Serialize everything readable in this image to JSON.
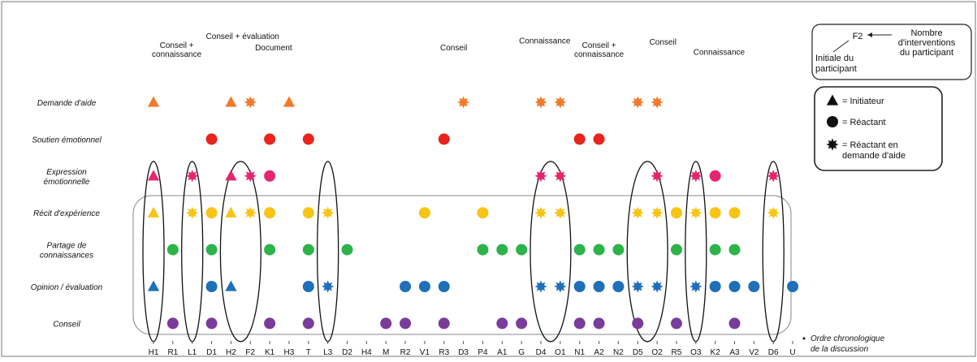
{
  "categories": [
    {
      "key": "demande",
      "label": [
        "Demande d'aide"
      ],
      "color": "#f07b2b"
    },
    {
      "key": "soutien",
      "label": [
        "Soutien émotionnel"
      ],
      "color": "#e8241c"
    },
    {
      "key": "expression",
      "label": [
        "Expression",
        "émotionnelle"
      ],
      "color": "#e5266f"
    },
    {
      "key": "recit",
      "label": [
        "Récit d'expérience"
      ],
      "color": "#f8c416"
    },
    {
      "key": "partage",
      "label": [
        "Partage de",
        "connaissances"
      ],
      "color": "#2cb34a"
    },
    {
      "key": "opinion",
      "label": [
        "Opinion / évaluation"
      ],
      "color": "#1f6fb9"
    },
    {
      "key": "conseil",
      "label": [
        "Conseil"
      ],
      "color": "#7a3c9b"
    }
  ],
  "participants": [
    "H1",
    "R1",
    "L1",
    "D1",
    "H2",
    "F2",
    "K1",
    "H3",
    "T",
    "L3",
    "D2",
    "H4",
    "M",
    "R2",
    "V1",
    "R3",
    "D3",
    "P4",
    "A1",
    "G",
    "D4",
    "O1",
    "N1",
    "A2",
    "N2",
    "D5",
    "O2",
    "R5",
    "O3",
    "K2",
    "A3",
    "V2",
    "D6",
    "U"
  ],
  "marks": [
    {
      "p": 0,
      "c": 0,
      "s": "triangle"
    },
    {
      "p": 4,
      "c": 0,
      "s": "triangle"
    },
    {
      "p": 5,
      "c": 0,
      "s": "star"
    },
    {
      "p": 7,
      "c": 0,
      "s": "triangle"
    },
    {
      "p": 16,
      "c": 0,
      "s": "star"
    },
    {
      "p": 20,
      "c": 0,
      "s": "star"
    },
    {
      "p": 21,
      "c": 0,
      "s": "star"
    },
    {
      "p": 25,
      "c": 0,
      "s": "star"
    },
    {
      "p": 26,
      "c": 0,
      "s": "star"
    },
    {
      "p": 3,
      "c": 1,
      "s": "circle"
    },
    {
      "p": 6,
      "c": 1,
      "s": "circle"
    },
    {
      "p": 8,
      "c": 1,
      "s": "circle"
    },
    {
      "p": 15,
      "c": 1,
      "s": "circle"
    },
    {
      "p": 22,
      "c": 1,
      "s": "circle"
    },
    {
      "p": 23,
      "c": 1,
      "s": "circle"
    },
    {
      "p": 0,
      "c": 2,
      "s": "triangle"
    },
    {
      "p": 2,
      "c": 2,
      "s": "star"
    },
    {
      "p": 4,
      "c": 2,
      "s": "triangle"
    },
    {
      "p": 5,
      "c": 2,
      "s": "star"
    },
    {
      "p": 6,
      "c": 2,
      "s": "circle"
    },
    {
      "p": 20,
      "c": 2,
      "s": "star"
    },
    {
      "p": 21,
      "c": 2,
      "s": "star"
    },
    {
      "p": 26,
      "c": 2,
      "s": "star"
    },
    {
      "p": 28,
      "c": 2,
      "s": "star"
    },
    {
      "p": 29,
      "c": 2,
      "s": "circle"
    },
    {
      "p": 32,
      "c": 2,
      "s": "star"
    },
    {
      "p": 0,
      "c": 3,
      "s": "triangle"
    },
    {
      "p": 2,
      "c": 3,
      "s": "star"
    },
    {
      "p": 3,
      "c": 3,
      "s": "circle"
    },
    {
      "p": 4,
      "c": 3,
      "s": "triangle"
    },
    {
      "p": 5,
      "c": 3,
      "s": "star"
    },
    {
      "p": 6,
      "c": 3,
      "s": "circle"
    },
    {
      "p": 8,
      "c": 3,
      "s": "circle"
    },
    {
      "p": 9,
      "c": 3,
      "s": "star"
    },
    {
      "p": 14,
      "c": 3,
      "s": "circle"
    },
    {
      "p": 17,
      "c": 3,
      "s": "circle"
    },
    {
      "p": 20,
      "c": 3,
      "s": "star"
    },
    {
      "p": 21,
      "c": 3,
      "s": "star"
    },
    {
      "p": 25,
      "c": 3,
      "s": "star"
    },
    {
      "p": 26,
      "c": 3,
      "s": "star"
    },
    {
      "p": 27,
      "c": 3,
      "s": "circle"
    },
    {
      "p": 28,
      "c": 3,
      "s": "star"
    },
    {
      "p": 29,
      "c": 3,
      "s": "circle"
    },
    {
      "p": 30,
      "c": 3,
      "s": "circle"
    },
    {
      "p": 32,
      "c": 3,
      "s": "star"
    },
    {
      "p": 1,
      "c": 4,
      "s": "circle"
    },
    {
      "p": 3,
      "c": 4,
      "s": "circle"
    },
    {
      "p": 6,
      "c": 4,
      "s": "circle"
    },
    {
      "p": 8,
      "c": 4,
      "s": "circle"
    },
    {
      "p": 10,
      "c": 4,
      "s": "circle"
    },
    {
      "p": 17,
      "c": 4,
      "s": "circle"
    },
    {
      "p": 18,
      "c": 4,
      "s": "circle"
    },
    {
      "p": 19,
      "c": 4,
      "s": "circle"
    },
    {
      "p": 22,
      "c": 4,
      "s": "circle"
    },
    {
      "p": 23,
      "c": 4,
      "s": "circle"
    },
    {
      "p": 24,
      "c": 4,
      "s": "circle"
    },
    {
      "p": 27,
      "c": 4,
      "s": "circle"
    },
    {
      "p": 29,
      "c": 4,
      "s": "circle"
    },
    {
      "p": 30,
      "c": 4,
      "s": "circle"
    },
    {
      "p": 0,
      "c": 5,
      "s": "triangle"
    },
    {
      "p": 3,
      "c": 5,
      "s": "circle"
    },
    {
      "p": 4,
      "c": 5,
      "s": "triangle"
    },
    {
      "p": 8,
      "c": 5,
      "s": "circle"
    },
    {
      "p": 9,
      "c": 5,
      "s": "star"
    },
    {
      "p": 13,
      "c": 5,
      "s": "circle"
    },
    {
      "p": 14,
      "c": 5,
      "s": "circle"
    },
    {
      "p": 15,
      "c": 5,
      "s": "circle"
    },
    {
      "p": 20,
      "c": 5,
      "s": "star"
    },
    {
      "p": 21,
      "c": 5,
      "s": "star"
    },
    {
      "p": 22,
      "c": 5,
      "s": "circle"
    },
    {
      "p": 23,
      "c": 5,
      "s": "circle"
    },
    {
      "p": 24,
      "c": 5,
      "s": "circle"
    },
    {
      "p": 25,
      "c": 5,
      "s": "star"
    },
    {
      "p": 26,
      "c": 5,
      "s": "star"
    },
    {
      "p": 28,
      "c": 5,
      "s": "star"
    },
    {
      "p": 29,
      "c": 5,
      "s": "circle"
    },
    {
      "p": 30,
      "c": 5,
      "s": "circle"
    },
    {
      "p": 31,
      "c": 5,
      "s": "circle"
    },
    {
      "p": 33,
      "c": 5,
      "s": "circle"
    },
    {
      "p": 1,
      "c": 6,
      "s": "circle"
    },
    {
      "p": 3,
      "c": 6,
      "s": "circle"
    },
    {
      "p": 6,
      "c": 6,
      "s": "circle"
    },
    {
      "p": 8,
      "c": 6,
      "s": "circle"
    },
    {
      "p": 12,
      "c": 6,
      "s": "circle"
    },
    {
      "p": 13,
      "c": 6,
      "s": "circle"
    },
    {
      "p": 15,
      "c": 6,
      "s": "circle"
    },
    {
      "p": 18,
      "c": 6,
      "s": "circle"
    },
    {
      "p": 19,
      "c": 6,
      "s": "circle"
    },
    {
      "p": 22,
      "c": 6,
      "s": "circle"
    },
    {
      "p": 23,
      "c": 6,
      "s": "circle"
    },
    {
      "p": 25,
      "c": 6,
      "s": "circle"
    },
    {
      "p": 27,
      "c": 6,
      "s": "circle"
    },
    {
      "p": 30,
      "c": 6,
      "s": "circle"
    }
  ],
  "groups": [
    {
      "from": 0,
      "to": 0
    },
    {
      "from": 2,
      "to": 2
    },
    {
      "from": 4,
      "to": 5
    },
    {
      "from": 9,
      "to": 9
    },
    {
      "from": 20,
      "to": 21
    },
    {
      "from": 25,
      "to": 26
    },
    {
      "from": 28,
      "to": 28
    },
    {
      "from": 32,
      "to": 32
    }
  ],
  "annotations": [
    {
      "label": [
        "Conseil + évaluation"
      ],
      "col": 4.6,
      "row": -2,
      "anchor": "middle"
    },
    {
      "label": [
        "Conseil +",
        "connaissance"
      ],
      "col": 1.2,
      "row": -1.2,
      "anchor": "middle"
    },
    {
      "label": [
        "Document"
      ],
      "col": 6.2,
      "row": -1,
      "anchor": "middle"
    },
    {
      "label": [
        "Conseil"
      ],
      "col": 15.5,
      "row": -1,
      "anchor": "middle"
    },
    {
      "label": [
        "Connaissance"
      ],
      "col": 20.2,
      "row": -1.6,
      "anchor": "middle"
    },
    {
      "label": [
        "Conseil +",
        "connaissance"
      ],
      "col": 23,
      "row": -1.2,
      "anchor": "middle"
    },
    {
      "label": [
        "Conseil"
      ],
      "col": 26.3,
      "row": -1.5,
      "anchor": "middle"
    },
    {
      "label": [
        "Connaissance"
      ],
      "col": 29.2,
      "row": -0.6,
      "anchor": "middle"
    }
  ],
  "axis_label": [
    "Ordre chronologique",
    "de la discussion"
  ],
  "legend_top": {
    "code": "F2",
    "count_label": [
      "Nombre",
      "d'interventions",
      "du participant"
    ],
    "initial_label": [
      "Initiale du",
      "participant"
    ]
  },
  "legend_shapes": [
    {
      "shape": "triangle",
      "label": [
        "= Initiateur"
      ]
    },
    {
      "shape": "circle",
      "label": [
        "= Réactant"
      ]
    },
    {
      "shape": "star",
      "label": [
        "= Réactant en",
        "demande d'aide"
      ]
    }
  ]
}
